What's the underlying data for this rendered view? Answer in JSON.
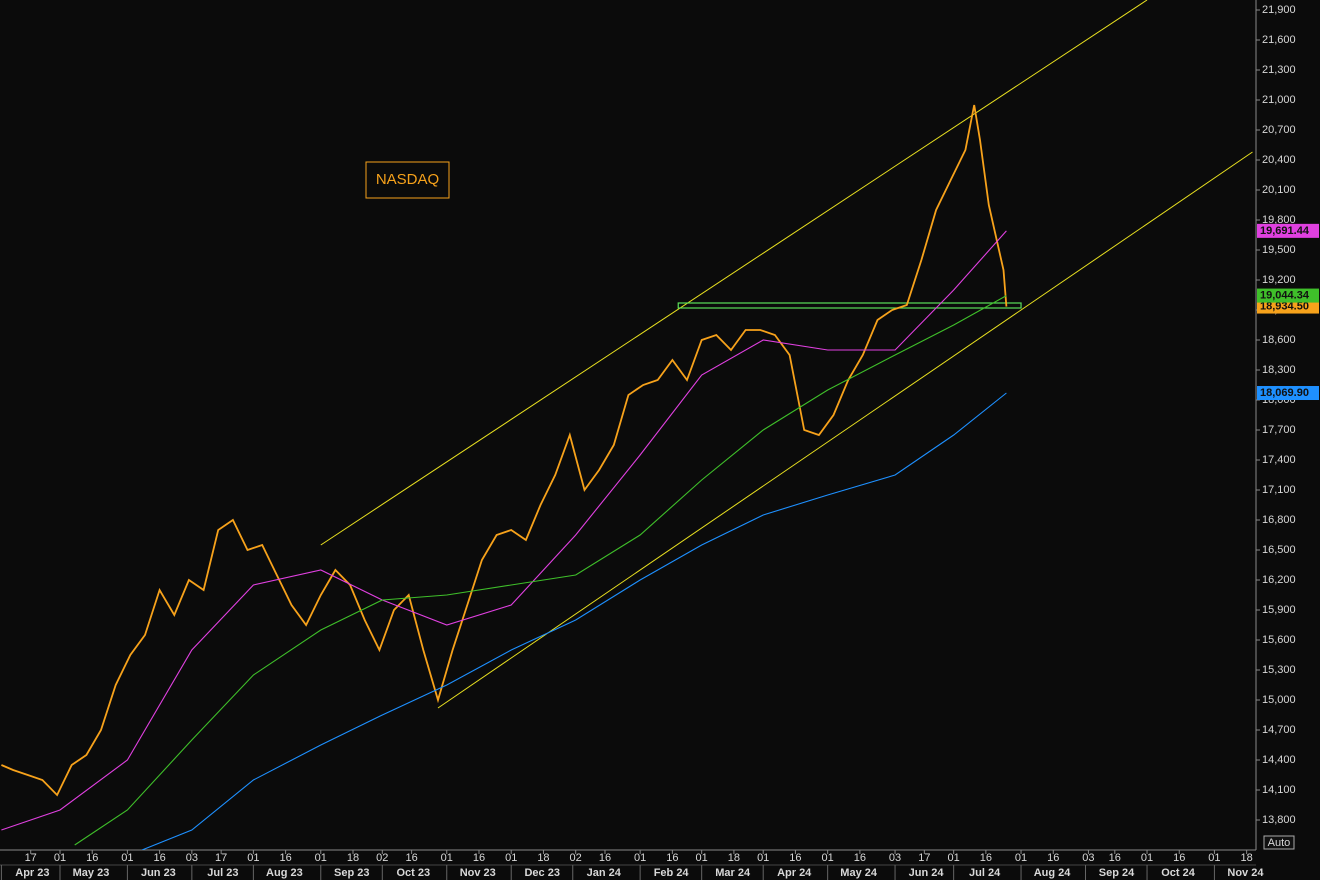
{
  "chart_data": {
    "type": "line",
    "annotation": "NASDAQ",
    "button": "Auto",
    "ylim": [
      13500,
      22000
    ],
    "yticks": [
      {
        "value": 13800,
        "label": "13,800"
      },
      {
        "value": 14100,
        "label": "14,100"
      },
      {
        "value": 14400,
        "label": "14,400"
      },
      {
        "value": 14700,
        "label": "14,700"
      },
      {
        "value": 15000,
        "label": "15,000"
      },
      {
        "value": 15300,
        "label": "15,300"
      },
      {
        "value": 15600,
        "label": "15,600"
      },
      {
        "value": 15900,
        "label": "15,900"
      },
      {
        "value": 16200,
        "label": "16,200"
      },
      {
        "value": 16500,
        "label": "16,500"
      },
      {
        "value": 16800,
        "label": "16,800"
      },
      {
        "value": 17100,
        "label": "17,100"
      },
      {
        "value": 17400,
        "label": "17,400"
      },
      {
        "value": 17700,
        "label": "17,700"
      },
      {
        "value": 18000,
        "label": "18,000"
      },
      {
        "value": 18300,
        "label": "18,300"
      },
      {
        "value": 18600,
        "label": "18,600"
      },
      {
        "value": 18900,
        "label": "18,900"
      },
      {
        "value": 19200,
        "label": "19,200"
      },
      {
        "value": 19500,
        "label": "19,500"
      },
      {
        "value": 19800,
        "label": "19,800"
      },
      {
        "value": 20100,
        "label": "20,100"
      },
      {
        "value": 20400,
        "label": "20,400"
      },
      {
        "value": 20700,
        "label": "20,700"
      },
      {
        "value": 21000,
        "label": "21,000"
      },
      {
        "value": 21300,
        "label": "21,300"
      },
      {
        "value": 21600,
        "label": "21,600"
      },
      {
        "value": 21900,
        "label": "21,900"
      }
    ],
    "xticks": [
      {
        "value": "2023-04-17",
        "label": "17"
      },
      {
        "value": "2023-05-01",
        "label": "01"
      },
      {
        "value": "2023-05-16",
        "label": "16"
      },
      {
        "value": "2023-06-01",
        "label": "01"
      },
      {
        "value": "2023-06-16",
        "label": "16"
      },
      {
        "value": "2023-07-03",
        "label": "03"
      },
      {
        "value": "2023-07-17",
        "label": "17"
      },
      {
        "value": "2023-08-01",
        "label": "01"
      },
      {
        "value": "2023-08-16",
        "label": "16"
      },
      {
        "value": "2023-09-01",
        "label": "01"
      },
      {
        "value": "2023-09-18",
        "label": "18"
      },
      {
        "value": "2023-10-02",
        "label": "02"
      },
      {
        "value": "2023-10-16",
        "label": "16"
      },
      {
        "value": "2023-11-01",
        "label": "01"
      },
      {
        "value": "2023-11-16",
        "label": "16"
      },
      {
        "value": "2023-12-01",
        "label": "01"
      },
      {
        "value": "2023-12-18",
        "label": "18"
      },
      {
        "value": "2024-01-02",
        "label": "02"
      },
      {
        "value": "2024-01-16",
        "label": "16"
      },
      {
        "value": "2024-02-01",
        "label": "01"
      },
      {
        "value": "2024-02-16",
        "label": "16"
      },
      {
        "value": "2024-03-01",
        "label": "01"
      },
      {
        "value": "2024-03-18",
        "label": "18"
      },
      {
        "value": "2024-04-01",
        "label": "01"
      },
      {
        "value": "2024-04-16",
        "label": "16"
      },
      {
        "value": "2024-05-01",
        "label": "01"
      },
      {
        "value": "2024-05-16",
        "label": "16"
      },
      {
        "value": "2024-06-03",
        "label": "03"
      },
      {
        "value": "2024-06-17",
        "label": "17"
      },
      {
        "value": "2024-07-01",
        "label": "01"
      },
      {
        "value": "2024-07-16",
        "label": "16"
      },
      {
        "value": "2024-08-01",
        "label": "01"
      },
      {
        "value": "2024-08-16",
        "label": "16"
      },
      {
        "value": "2024-09-03",
        "label": "03"
      },
      {
        "value": "2024-09-16",
        "label": "16"
      },
      {
        "value": "2024-10-01",
        "label": "01"
      },
      {
        "value": "2024-10-16",
        "label": "16"
      },
      {
        "value": "2024-11-01",
        "label": "01"
      },
      {
        "value": "2024-11-18",
        "label": "18"
      }
    ],
    "months": [
      {
        "value": "2023-04-01",
        "label": "Apr 23"
      },
      {
        "value": "2023-05-01",
        "label": "May 23"
      },
      {
        "value": "2023-06-01",
        "label": "Jun 23"
      },
      {
        "value": "2023-07-01",
        "label": "Jul 23"
      },
      {
        "value": "2023-08-01",
        "label": "Aug 23"
      },
      {
        "value": "2023-09-01",
        "label": "Sep 23"
      },
      {
        "value": "2023-10-01",
        "label": "Oct 23"
      },
      {
        "value": "2023-11-01",
        "label": "Nov 23"
      },
      {
        "value": "2023-12-01",
        "label": "Dec 23"
      },
      {
        "value": "2024-01-01",
        "label": "Jan 24"
      },
      {
        "value": "2024-02-01",
        "label": "Feb 24"
      },
      {
        "value": "2024-03-01",
        "label": "Mar 24"
      },
      {
        "value": "2024-04-01",
        "label": "Apr 24"
      },
      {
        "value": "2024-05-01",
        "label": "May 24"
      },
      {
        "value": "2024-06-01",
        "label": "Jun 24"
      },
      {
        "value": "2024-07-01",
        "label": "Jul 24"
      },
      {
        "value": "2024-08-01",
        "label": "Aug 24"
      },
      {
        "value": "2024-09-01",
        "label": "Sep 24"
      },
      {
        "value": "2024-10-01",
        "label": "Oct 24"
      },
      {
        "value": "2024-11-01",
        "label": "Nov 24"
      }
    ],
    "series": [
      {
        "color": "#f7a21b",
        "x": [
          "2023-04-03",
          "2023-04-07",
          "2023-04-14",
          "2023-04-21",
          "2023-04-28",
          "2023-05-05",
          "2023-05-12",
          "2023-05-19",
          "2023-05-26",
          "2023-06-02",
          "2023-06-09",
          "2023-06-16",
          "2023-06-23",
          "2023-06-30",
          "2023-07-07",
          "2023-07-14",
          "2023-07-21",
          "2023-07-28",
          "2023-08-04",
          "2023-08-11",
          "2023-08-18",
          "2023-08-25",
          "2023-09-01",
          "2023-09-08",
          "2023-09-15",
          "2023-09-22",
          "2023-09-29",
          "2023-10-06",
          "2023-10-13",
          "2023-10-20",
          "2023-10-27",
          "2023-11-03",
          "2023-11-10",
          "2023-11-17",
          "2023-11-24",
          "2023-12-01",
          "2023-12-08",
          "2023-12-15",
          "2023-12-22",
          "2023-12-29",
          "2024-01-05",
          "2024-01-12",
          "2024-01-19",
          "2024-01-26",
          "2024-02-02",
          "2024-02-09",
          "2024-02-16",
          "2024-02-23",
          "2024-03-01",
          "2024-03-08",
          "2024-03-15",
          "2024-03-22",
          "2024-03-29",
          "2024-04-05",
          "2024-04-12",
          "2024-04-19",
          "2024-04-26",
          "2024-05-03",
          "2024-05-10",
          "2024-05-17",
          "2024-05-24",
          "2024-05-31",
          "2024-06-07",
          "2024-06-14",
          "2024-06-21",
          "2024-06-28",
          "2024-07-05",
          "2024-07-10",
          "2024-07-12",
          "2024-07-17",
          "2024-07-24",
          "2024-07-25"
        ],
        "values": [
          14350,
          14300,
          14250,
          14200,
          14050,
          14350,
          14450,
          14700,
          15150,
          15450,
          15650,
          16100,
          15850,
          16200,
          16100,
          16700,
          16800,
          16500,
          16550,
          16250,
          15950,
          15750,
          16050,
          16300,
          16150,
          15800,
          15500,
          15900,
          16050,
          15500,
          15000,
          15500,
          15950,
          16400,
          16650,
          16700,
          16600,
          16950,
          17250,
          17650,
          17100,
          17300,
          17550,
          18050,
          18150,
          18200,
          18400,
          18200,
          18600,
          18650,
          18500,
          18700,
          18700,
          18650,
          18450,
          17700,
          17650,
          17850,
          18200,
          18450,
          18800,
          18900,
          18950,
          19400,
          19900,
          20200,
          20500,
          20950,
          20600,
          19950,
          19300,
          18934.5
        ],
        "last_label": "18,934.50"
      },
      {
        "color": "#e040e0",
        "x": [
          "2023-04-03",
          "2023-05-01",
          "2023-06-01",
          "2023-07-03",
          "2023-08-01",
          "2023-09-01",
          "2023-10-02",
          "2023-11-01",
          "2023-12-01",
          "2024-01-02",
          "2024-02-01",
          "2024-03-01",
          "2024-04-01",
          "2024-05-01",
          "2024-06-03",
          "2024-07-01",
          "2024-07-25"
        ],
        "values": [
          13700,
          13900,
          14400,
          15500,
          16150,
          16300,
          16000,
          15750,
          15950,
          16650,
          17450,
          18250,
          18600,
          18500,
          18500,
          19100,
          19691.44
        ],
        "last_label": "19,691.44"
      },
      {
        "color": "#3fbf2a",
        "x": [
          "2023-05-08",
          "2023-06-01",
          "2023-07-03",
          "2023-08-01",
          "2023-09-01",
          "2023-10-02",
          "2023-11-01",
          "2023-12-01",
          "2024-01-02",
          "2024-02-01",
          "2024-03-01",
          "2024-04-01",
          "2024-05-01",
          "2024-06-03",
          "2024-07-01",
          "2024-07-25"
        ],
        "values": [
          13550,
          13900,
          14600,
          15250,
          15700,
          16000,
          16050,
          16150,
          16250,
          16650,
          17200,
          17700,
          18100,
          18450,
          18750,
          19044.34
        ],
        "last_label": "19,044.34"
      },
      {
        "color": "#1e90ff",
        "x": [
          "2023-06-08",
          "2023-07-03",
          "2023-08-01",
          "2023-09-01",
          "2023-10-02",
          "2023-11-01",
          "2023-12-01",
          "2024-01-02",
          "2024-02-01",
          "2024-03-01",
          "2024-04-01",
          "2024-05-01",
          "2024-06-03",
          "2024-07-01",
          "2024-07-25"
        ],
        "values": [
          13500,
          13700,
          14200,
          14550,
          14850,
          15150,
          15500,
          15800,
          16200,
          16550,
          16850,
          17050,
          17250,
          17650,
          18069.9
        ],
        "last_label": "18,069.90"
      }
    ],
    "trendlines": [
      {
        "color": "#e8e020",
        "x": [
          "2023-09-01",
          "2024-10-01"
        ],
        "values": [
          16550,
          22000
        ]
      },
      {
        "color": "#e8e020",
        "x": [
          "2023-10-27",
          "2024-11-20"
        ],
        "values": [
          14920,
          20480
        ]
      }
    ],
    "zone": {
      "color": "#5be05b",
      "x": [
        "2024-02-20",
        "2024-08-01"
      ],
      "values": [
        18920,
        18970
      ]
    }
  }
}
